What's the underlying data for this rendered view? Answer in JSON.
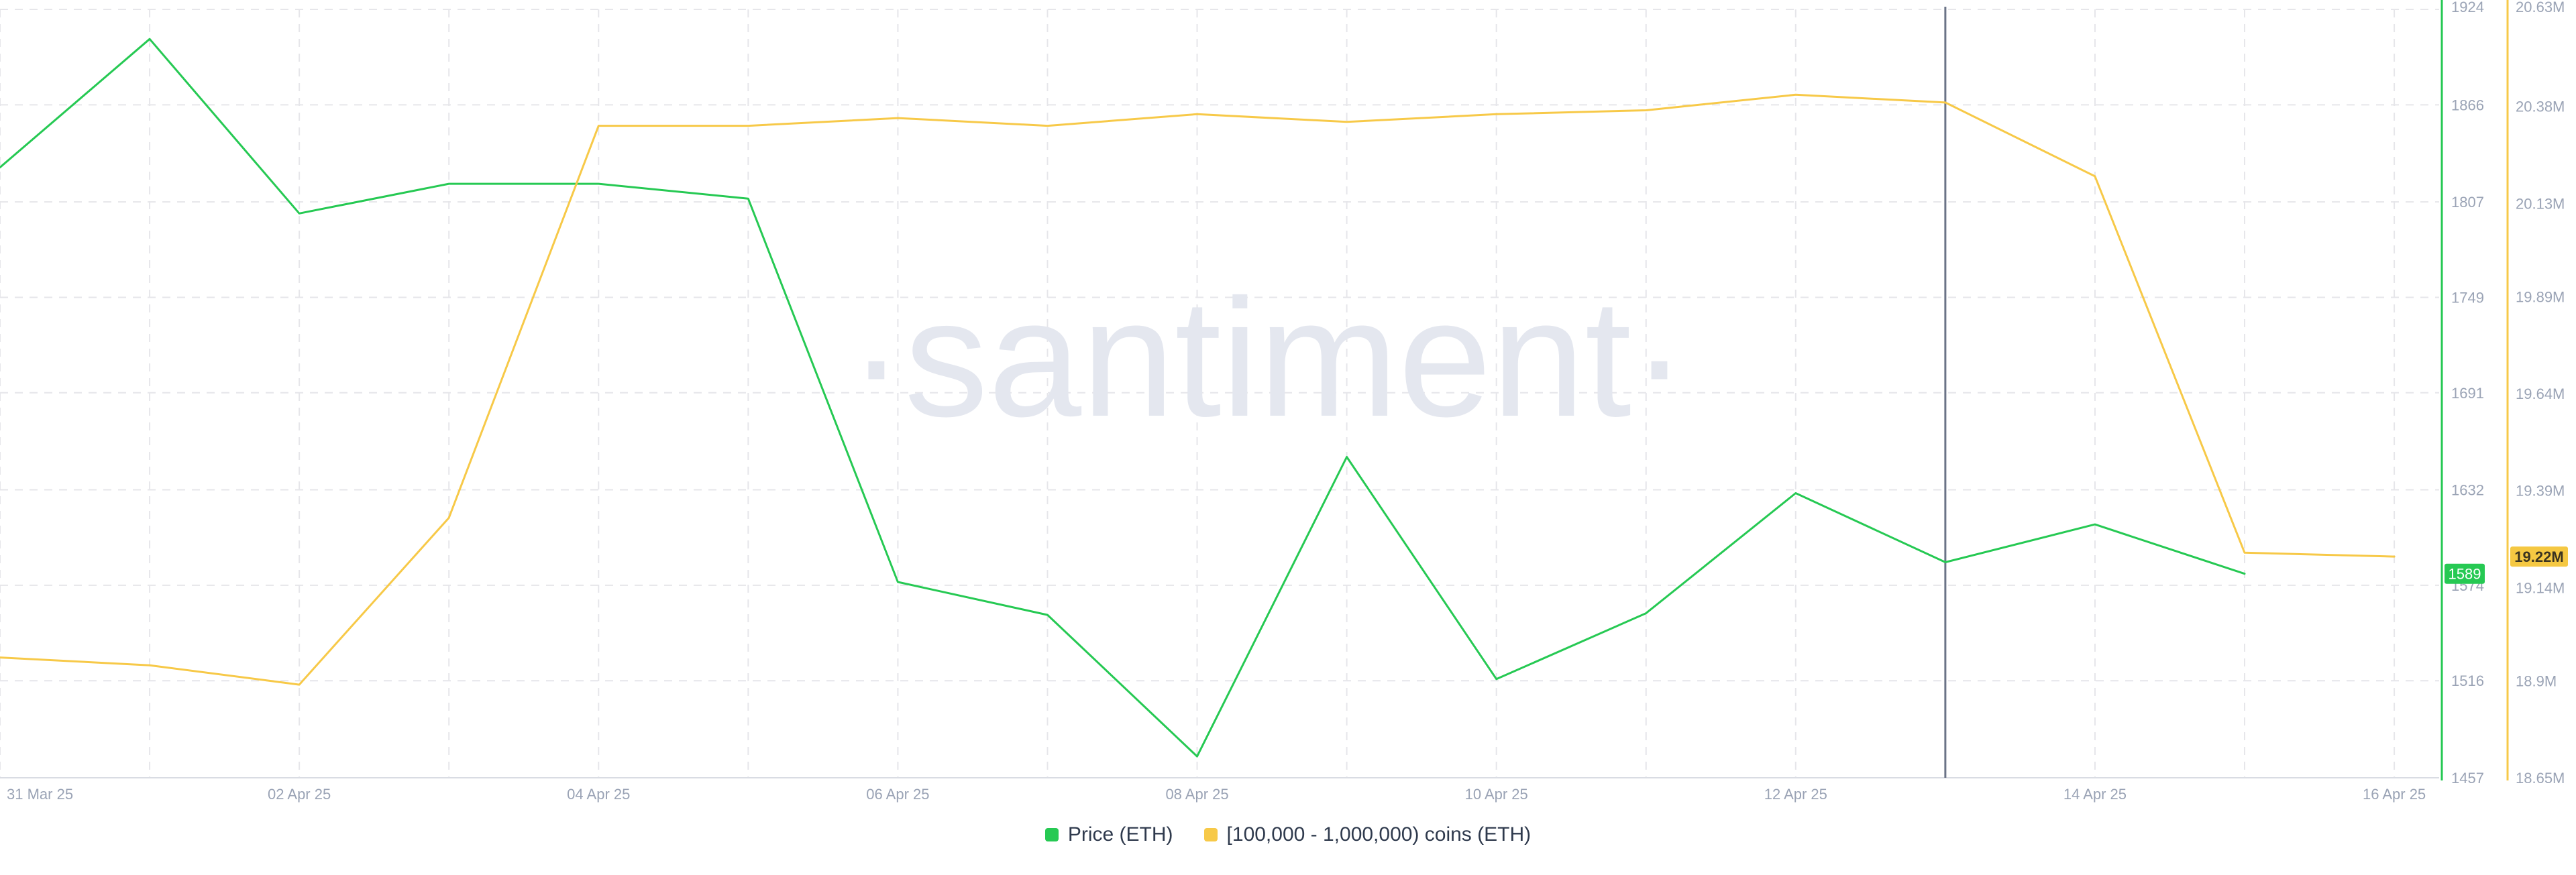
{
  "watermark": "·santiment·",
  "colors": {
    "price": "#26c953",
    "holders": "#f7c948",
    "grid": "#e6e6ea",
    "axis_text": "#9aa3b5",
    "crosshair": "#6b7387",
    "watermark": "#e4e7ef",
    "price_badge": "#26c953",
    "holders_badge": "#f5c842"
  },
  "legend": {
    "price_label": "Price (ETH)",
    "holders_label": "[100,000  - 1,000,000) coins (ETH)"
  },
  "chart_data": {
    "type": "line",
    "x_tick_labels": [
      "31 Mar 25",
      "02 Apr 25",
      "04 Apr 25",
      "06 Apr 25",
      "08 Apr 25",
      "10 Apr 25",
      "12 Apr 25",
      "14 Apr 25",
      "16 Apr 25"
    ],
    "x_tick_index": [
      0,
      2,
      4,
      6,
      8,
      10,
      12,
      14,
      16
    ],
    "x_range": [
      0,
      16.3
    ],
    "crosshair_index": 13,
    "grid": true,
    "legend_position": "bottom-center",
    "series": [
      {
        "name": "Price (ETH)",
        "axis": "left-inner",
        "x_index": [
          0,
          1,
          2,
          3,
          4,
          5,
          6,
          7,
          8,
          9,
          10,
          11,
          12,
          13,
          14,
          15
        ],
        "values": [
          1828,
          1906,
          1800,
          1818,
          1818,
          1809,
          1576,
          1556,
          1470,
          1652,
          1517,
          1557,
          1630,
          1588,
          1611,
          1581
        ],
        "current_value_label": "1589"
      },
      {
        "name": "[100,000  - 1,000,000) coins (ETH)",
        "axis": "right-outer",
        "x_index": [
          0,
          1,
          2,
          3,
          4,
          5,
          6,
          7,
          8,
          9,
          10,
          11,
          12,
          13,
          14,
          15,
          16
        ],
        "values": [
          18.96,
          18.94,
          18.89,
          19.32,
          20.33,
          20.33,
          20.35,
          20.33,
          20.36,
          20.34,
          20.36,
          20.37,
          20.41,
          20.39,
          20.2,
          19.23,
          19.22
        ],
        "current_value_label": "19.22M"
      }
    ],
    "y_axes": [
      {
        "id": "left-inner",
        "range": [
          1457,
          1924
        ],
        "ticks": [
          1457,
          1516,
          1574,
          1632,
          1691,
          1749,
          1807,
          1866,
          1924
        ],
        "tick_labels": [
          "1457",
          "1516",
          "1574",
          "1632",
          "1691",
          "1749",
          "1807",
          "1866",
          "1924"
        ]
      },
      {
        "id": "right-outer",
        "range": [
          18.65,
          20.63
        ],
        "ticks": [
          18.65,
          18.9,
          19.14,
          19.39,
          19.64,
          19.89,
          20.13,
          20.38,
          20.63
        ],
        "tick_labels": [
          "18.65M",
          "18.9M",
          "19.14M",
          "19.39M",
          "19.64M",
          "19.89M",
          "20.13M",
          "20.38M",
          "20.63M"
        ]
      }
    ]
  }
}
